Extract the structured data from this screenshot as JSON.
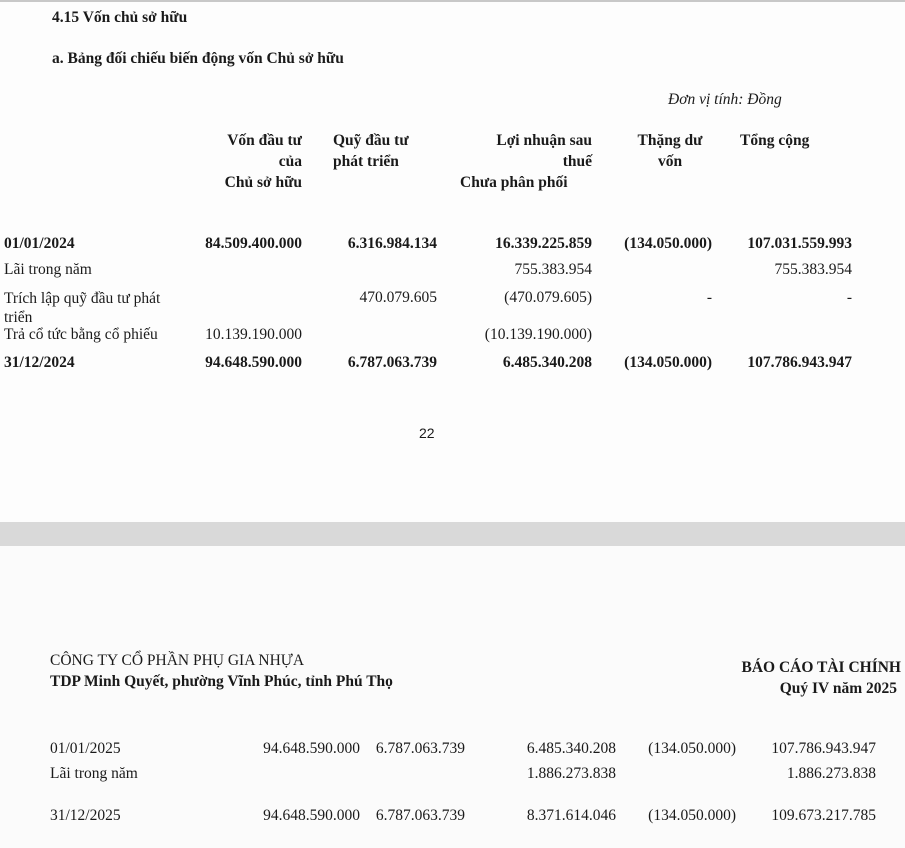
{
  "page1": {
    "section_title": "4.15 Vốn chủ sở hữu",
    "subtitle": "a. Bảng đối chiếu biến động vốn Chủ sở hữu",
    "unit": "Đơn vị tính: Đồng",
    "columns": [
      [
        "Vốn đầu tư",
        "của",
        "Chủ sở hữu"
      ],
      [
        "Quỹ đầu tư",
        "phát triển"
      ],
      [
        "Lợi nhuận sau",
        "thuế",
        "Chưa phân phối"
      ],
      [
        "Thặng dư",
        "vốn"
      ],
      [
        "Tổng cộng"
      ]
    ],
    "rows": [
      {
        "label": "01/01/2024",
        "values": [
          "84.509.400.000",
          "6.316.984.134",
          "16.339.225.859",
          "(134.050.000)",
          "107.031.559.993"
        ]
      },
      {
        "label": "Lãi trong năm",
        "values": [
          "",
          "",
          "755.383.954",
          "",
          "755.383.954"
        ]
      },
      {
        "label": "Trích lập quỹ đầu tư phát triển",
        "values": [
          "",
          "470.079.605",
          "(470.079.605)",
          "-",
          "-"
        ]
      },
      {
        "label": "Trả cổ tức bằng cổ phiếu",
        "values": [
          "10.139.190.000",
          "",
          "(10.139.190.000)",
          "",
          ""
        ]
      },
      {
        "label": "31/12/2024",
        "values": [
          "94.648.590.000",
          "6.787.063.739",
          "6.485.340.208",
          "(134.050.000)",
          "107.786.943.947"
        ]
      }
    ],
    "page_number": "22"
  },
  "page2": {
    "company_name": "CÔNG TY CỔ PHẦN PHỤ GIA NHỰA",
    "company_address": "TDP Minh Quyết, phường Vĩnh Phúc, tỉnh Phú Thọ",
    "report_title": "BÁO CÁO TÀI CHÍNH",
    "report_period": "Quý IV năm 2025",
    "rows": [
      {
        "label": "01/01/2025",
        "values": [
          "94.648.590.000",
          "6.787.063.739",
          "6.485.340.208",
          "(134.050.000)",
          "107.786.943.947"
        ]
      },
      {
        "label": "Lãi trong năm",
        "values": [
          "",
          "",
          "1.886.273.838",
          "",
          "1.886.273.838"
        ]
      },
      {
        "label": "31/12/2025",
        "values": [
          "94.648.590.000",
          "6.787.063.739",
          "8.371.614.046",
          "(134.050.000)",
          "109.673.217.785"
        ]
      }
    ]
  }
}
